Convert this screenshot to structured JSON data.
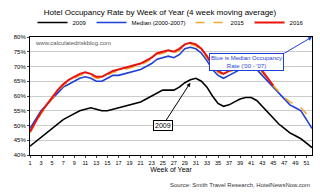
{
  "chart_data": {
    "type": "line",
    "title": "Hotel Occupancy Rate by Week of Year (4 week moving average)",
    "x_label": "Week of Year",
    "x": [
      1,
      2,
      3,
      4,
      5,
      6,
      7,
      8,
      9,
      10,
      11,
      12,
      13,
      14,
      15,
      16,
      17,
      18,
      19,
      20,
      21,
      22,
      23,
      24,
      25,
      26,
      27,
      28,
      29,
      30,
      31,
      32,
      33,
      34,
      35,
      36,
      37,
      38,
      39,
      40,
      41,
      42,
      43,
      44,
      45,
      46,
      47,
      48,
      49,
      50,
      51,
      52
    ],
    "xlim": [
      1,
      52
    ],
    "xticks": [
      1,
      3,
      5,
      7,
      9,
      11,
      13,
      15,
      17,
      19,
      21,
      23,
      25,
      27,
      29,
      31,
      33,
      35,
      37,
      39,
      41,
      43,
      45,
      47,
      49,
      51
    ],
    "ylim": [
      40,
      80
    ],
    "yticks": [
      {
        "value": 40,
        "label": "40%"
      },
      {
        "value": 45,
        "label": "45%"
      },
      {
        "value": 50,
        "label": "50%"
      },
      {
        "value": 55,
        "label": "55%"
      },
      {
        "value": 60,
        "label": "60%"
      },
      {
        "value": 65,
        "label": "65%"
      },
      {
        "value": 70,
        "label": "70%"
      },
      {
        "value": 75,
        "label": "75%"
      },
      {
        "value": 80,
        "label": "80%"
      }
    ],
    "grid": true,
    "legend": "top",
    "series": [
      {
        "name": "2009",
        "color": "#000000",
        "line_style": "solid",
        "values": [
          43,
          44.5,
          46,
          47.5,
          49,
          50.5,
          52,
          53,
          54,
          55,
          55.5,
          56,
          55.5,
          55,
          55,
          55.5,
          56,
          56.5,
          57,
          57.5,
          58,
          59,
          60,
          61,
          62,
          62,
          62,
          63,
          64.5,
          65.5,
          66,
          65,
          63,
          60,
          57.5,
          56.5,
          57,
          58,
          59,
          59.5,
          59.5,
          58.5,
          56.5,
          54.5,
          52.5,
          50.5,
          49,
          47.5,
          46.5,
          45.5,
          44,
          42.5
        ]
      },
      {
        "name": "Median (2000-2007)",
        "color": "#1f3fd6",
        "line_style": "solid",
        "values": [
          49,
          52,
          55,
          57,
          59,
          61,
          63,
          64,
          65,
          66,
          66.5,
          66,
          65,
          65,
          66,
          67,
          67,
          67.5,
          68,
          68.5,
          69,
          70,
          71,
          72.5,
          73,
          73.5,
          73,
          74,
          76,
          76.5,
          76,
          74.5,
          72,
          69,
          67,
          66,
          67,
          68,
          69,
          70,
          70,
          69,
          67,
          65,
          63,
          61,
          59,
          57,
          56,
          55,
          52,
          49
        ]
      },
      {
        "name": "2015",
        "color": "#f0a830",
        "line_style": "dashed",
        "values": [
          47.5,
          51,
          54,
          56.5,
          59,
          61.5,
          63.5,
          65,
          66,
          67,
          67.5,
          67,
          66,
          66,
          67,
          68,
          68.5,
          69,
          69.5,
          70,
          70.5,
          71.5,
          72.5,
          74,
          74.5,
          75,
          74.5,
          75.5,
          77,
          77.5,
          77,
          75.5,
          73,
          70,
          68,
          67,
          68,
          69,
          70,
          71,
          71,
          70,
          68,
          66,
          63.5,
          61.5,
          59.5,
          58,
          57,
          56,
          54,
          52
        ]
      },
      {
        "name": "2016",
        "color": "#e8140c",
        "line_style": "solid",
        "values": [
          48,
          51.5,
          54.5,
          57,
          59.5,
          62,
          64,
          65.5,
          66.5,
          67.5,
          68,
          67.5,
          66.5,
          66.5,
          67.5,
          68.5,
          69,
          69.5,
          70,
          70.5,
          71,
          72,
          73,
          74.5,
          75,
          75.5,
          75,
          76,
          77.5,
          78,
          77.5,
          76,
          73.5,
          70.5,
          68.5,
          67.5,
          68.5,
          69.5,
          70.5,
          71.5,
          71.5,
          70.5,
          68.5,
          66,
          63.5,
          null,
          null,
          null,
          null,
          null,
          null,
          null
        ]
      }
    ],
    "annotations": [
      "Blue is Median Occupancy\nRate ('00 - '07)",
      "2009"
    ],
    "source": "Source: Smith Travel Research, HotelNewsNow.com",
    "watermark": "www.calculatedriskblog.com"
  }
}
